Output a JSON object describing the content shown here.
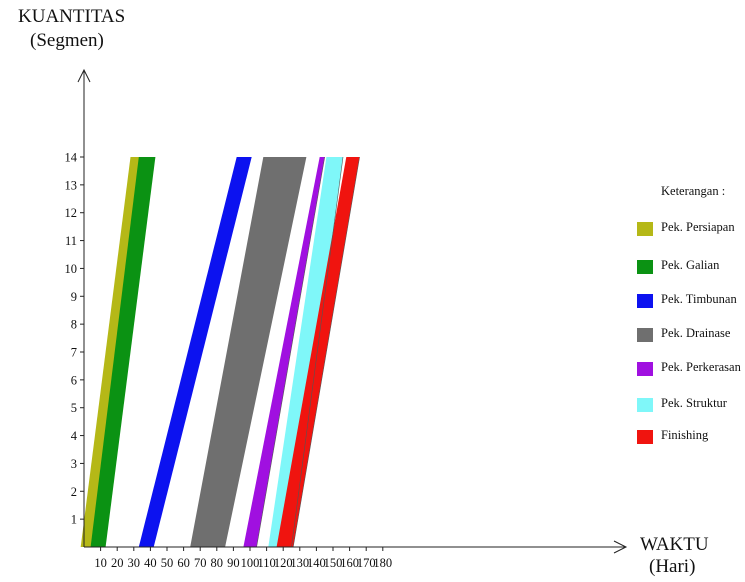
{
  "chart_data": {
    "type": "line",
    "ylabel": [
      "KUANTITAS",
      "(Segmen)"
    ],
    "xlabel": [
      "WAKTU",
      "(Hari)"
    ],
    "xlim": [
      0,
      185
    ],
    "ylim": [
      0,
      14
    ],
    "xticks": [
      10,
      20,
      30,
      40,
      50,
      60,
      70,
      80,
      90,
      100,
      110,
      120,
      130,
      140,
      150,
      160,
      170,
      180
    ],
    "yticks": [
      1,
      2,
      3,
      4,
      5,
      6,
      7,
      8,
      9,
      10,
      11,
      12,
      13,
      14
    ],
    "legend_title": "Keterangan :",
    "legend_position": "right",
    "series": [
      {
        "name": "Pek. Persiapan",
        "color": "#b5b817",
        "start": [
          -2,
          9
        ],
        "end": [
          28,
          34
        ]
      },
      {
        "name": "Pek. Galian",
        "color": "#0b9213",
        "start": [
          4,
          13
        ],
        "end": [
          33,
          43
        ]
      },
      {
        "name": "Pek. Timbunan",
        "color": "#0c12f0",
        "start": [
          33,
          42
        ],
        "end": [
          92,
          101
        ]
      },
      {
        "name": "Pek. Drainase",
        "color": "#6f6f6f",
        "start": [
          64,
          85
        ],
        "end": [
          108,
          134
        ]
      },
      {
        "name": "Pek. Perkerasan",
        "color": "#a010e0",
        "start": [
          96,
          104
        ],
        "end": [
          142,
          145
        ]
      },
      {
        "name": "Pek. Struktur",
        "color": "#7ff7f9",
        "start": [
          111,
          125
        ],
        "end": [
          146,
          156
        ]
      },
      {
        "name": "Finishing",
        "color": "#f0140f",
        "start": [
          116,
          126
        ],
        "end": [
          158,
          166
        ]
      }
    ]
  }
}
